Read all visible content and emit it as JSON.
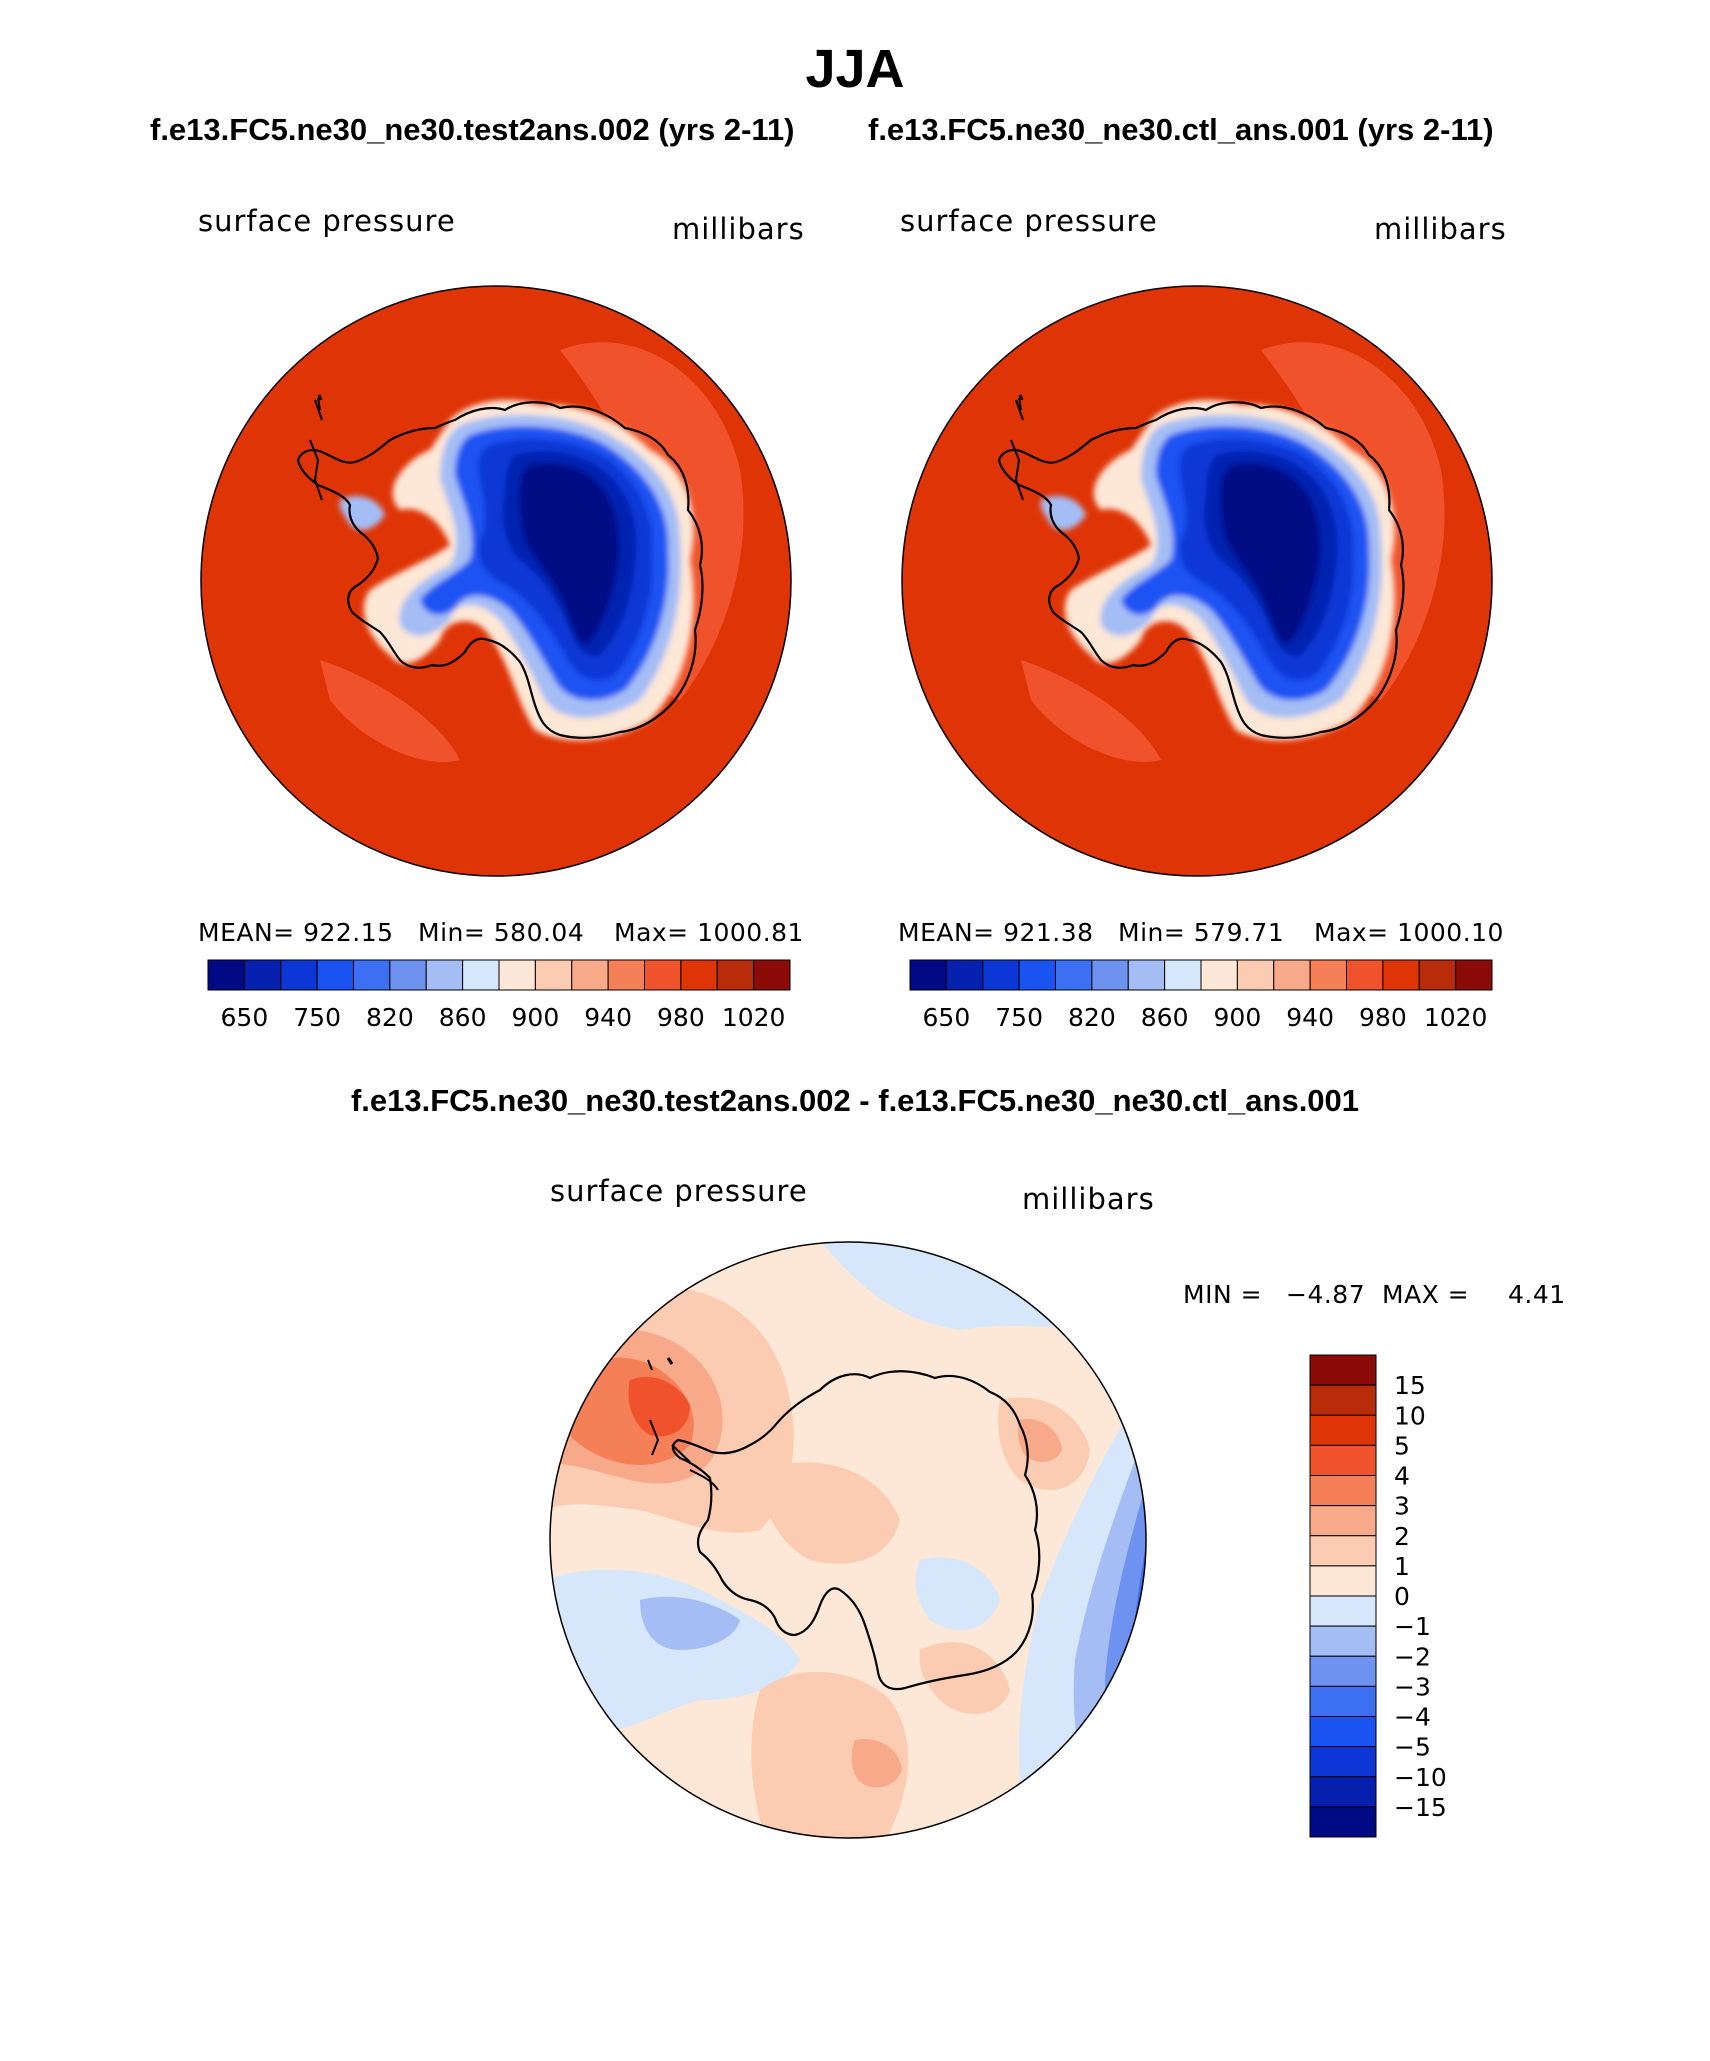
{
  "season": "JJA",
  "header": {
    "case_left": "f.e13.FC5.ne30_ne30.test2ans.002 (yrs 2-11)",
    "case_right": "f.e13.FC5.ne30_ne30.ctl_ans.001 (yrs 2-11)",
    "diff_title": "f.e13.FC5.ne30_ne30.test2ans.002 - f.e13.FC5.ne30_ne30.ctl_ans.001"
  },
  "panels": [
    {
      "variable": "surface pressure",
      "units": "millibars",
      "stats": {
        "mean": "MEAN= 922.15",
        "min": "Min= 580.04",
        "max": "Max= 1000.81"
      }
    },
    {
      "variable": "surface pressure",
      "units": "millibars",
      "stats": {
        "mean": "MEAN= 921.38",
        "min": "Min= 579.71",
        "max": "Max= 1000.10"
      }
    }
  ],
  "diff_panel": {
    "variable": "surface pressure",
    "units": "millibars",
    "min_label": "MIN =",
    "min_value": "−4.87",
    "max_label": "MAX =",
    "max_value": "4.41"
  },
  "colorbar_abs": {
    "colors": [
      "#000a85",
      "#0620b0",
      "#0c37d6",
      "#1a53f2",
      "#3d6ff2",
      "#6d92f0",
      "#a4bdf5",
      "#d6e6fb",
      "#fde7d6",
      "#fbcbb2",
      "#f8a98a",
      "#f57f57",
      "#f0532c",
      "#df3406",
      "#b82c09",
      "#8a0b07"
    ],
    "tick_labels": [
      "650",
      "750",
      "820",
      "860",
      "900",
      "940",
      "980",
      "1020"
    ]
  },
  "colorbar_diff": {
    "colors": [
      "#8a0b07",
      "#b82c09",
      "#df3406",
      "#f0532c",
      "#f57f57",
      "#f8a98a",
      "#fbcbb2",
      "#fde7d6",
      "#d6e6fb",
      "#a4bdf5",
      "#6d92f0",
      "#3d6ff2",
      "#1a53f2",
      "#0c37d6",
      "#0620b0",
      "#000a85"
    ],
    "tick_labels": [
      "15",
      "10",
      "5",
      "4",
      "3",
      "2",
      "1",
      "0",
      "−1",
      "−2",
      "−3",
      "−4",
      "−5",
      "−10",
      "−15"
    ]
  }
}
